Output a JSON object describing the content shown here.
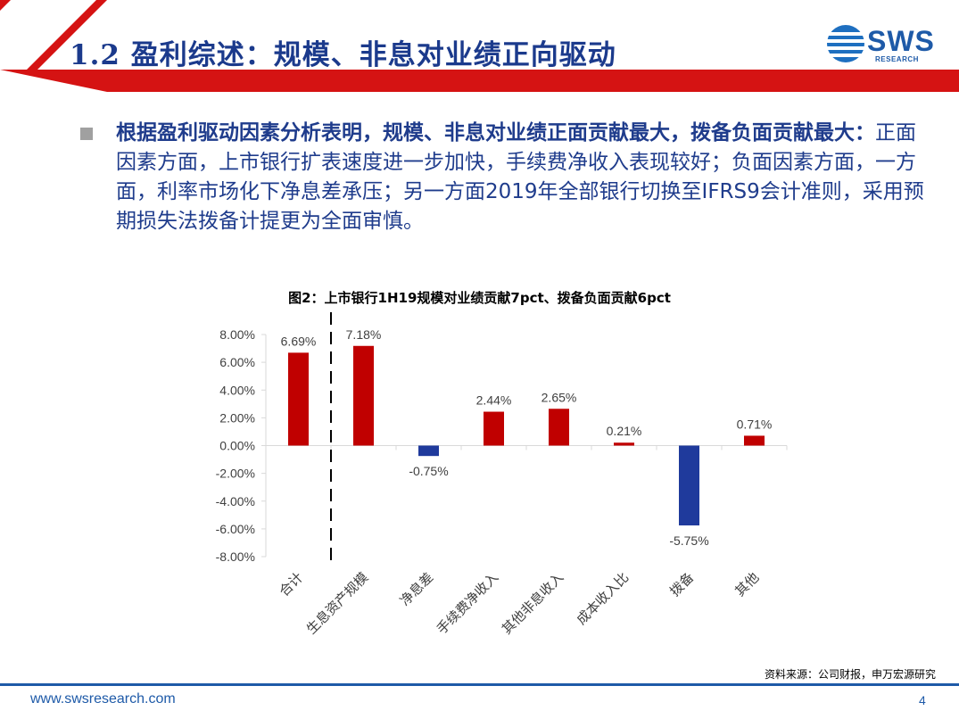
{
  "header": {
    "title": "1.2 盈利综述：规模、非息对业绩正向驱动",
    "logo_text": "SWS",
    "logo_sub": "RESEARCH"
  },
  "body": {
    "bullet_bold": "根据盈利驱动因素分析表明，规模、非息对业绩正面贡献最大，拨备负面贡献最大：",
    "bullet_text": "正面因素方面，上市银行扩表速度进一步加快，手续费净收入表现较好；负面因素方面，一方面，利率市场化下净息差承压；另一方面2019年全部银行切换至IFRS9会计准则，采用预期损失法拨备计提更为全面审慎。"
  },
  "chart_data": {
    "type": "bar",
    "title": "图2：上市银行1H19规模对业绩贡献7pct、拨备负面贡献6pct",
    "categories": [
      "合计",
      "生息资产规模",
      "净息差",
      "手续费净收入",
      "其他非息收入",
      "成本收入比",
      "拨备",
      "其他"
    ],
    "values": [
      6.69,
      7.18,
      -0.75,
      2.44,
      2.65,
      0.21,
      -5.75,
      0.71
    ],
    "data_labels": [
      "6.69%",
      "7.18%",
      "-0.75%",
      "2.44%",
      "2.65%",
      "0.21%",
      "-5.75%",
      "0.71%"
    ],
    "ylim": [
      -8,
      8
    ],
    "yticks": [
      "8.00%",
      "6.00%",
      "4.00%",
      "2.00%",
      "0.00%",
      "-2.00%",
      "-4.00%",
      "-6.00%",
      "-8.00%"
    ],
    "ytick_values": [
      8,
      6,
      4,
      2,
      0,
      -2,
      -4,
      -6,
      -8
    ],
    "positive_color": "#c00000",
    "negative_color": "#1f3a9c"
  },
  "footer": {
    "source": "资料来源：公司财报，申万宏源研究",
    "url": "www.swsresearch.com",
    "page": "4"
  }
}
